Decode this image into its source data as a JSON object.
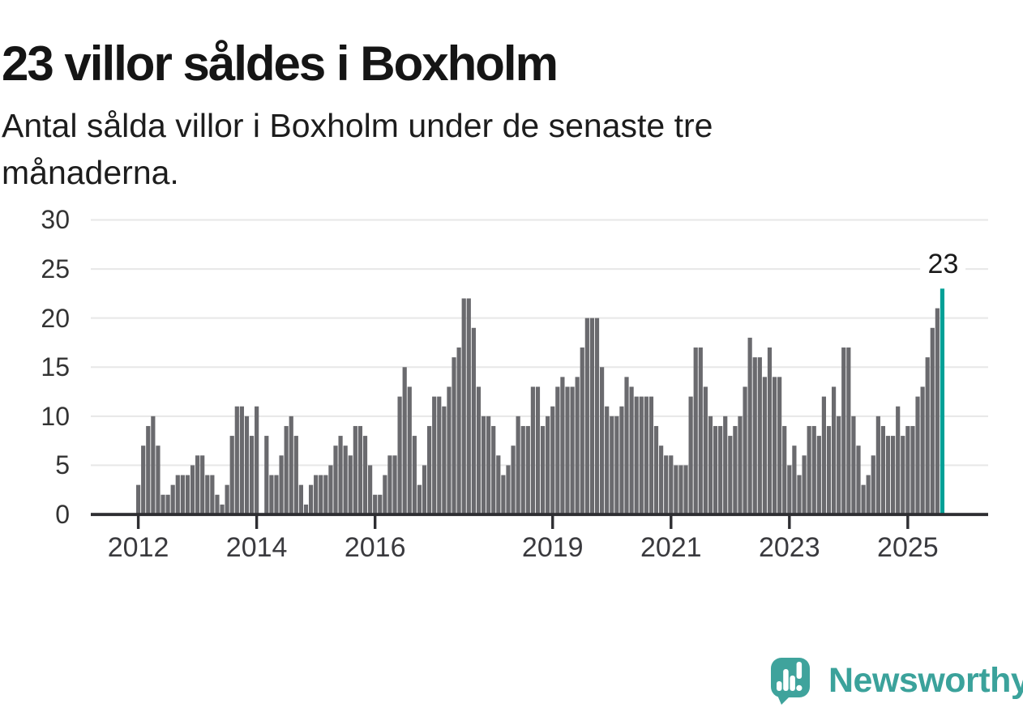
{
  "header": {
    "title": "23 villor såldes i Boxholm",
    "subtitle": "Antal sålda villor i Boxholm under de senaste tre månaderna."
  },
  "chart_data": {
    "type": "bar",
    "title": "23 villor såldes i Boxholm",
    "subtitle": "Antal sålda villor i Boxholm under de senaste tre månaderna.",
    "ylabel": "",
    "xlabel": "",
    "frequency": "monthly",
    "x_start": "2012-01",
    "x_end": "2025-08",
    "ylim": [
      0,
      30
    ],
    "yticks": [
      0,
      5,
      10,
      15,
      20,
      25,
      30
    ],
    "grid": true,
    "values": [
      3,
      7,
      9,
      10,
      7,
      2,
      2,
      3,
      4,
      4,
      4,
      5,
      6,
      6,
      4,
      4,
      2,
      1,
      3,
      8,
      11,
      11,
      10,
      8,
      11,
      0,
      8,
      4,
      4,
      6,
      9,
      10,
      8,
      3,
      1,
      3,
      4,
      4,
      4,
      5,
      7,
      8,
      7,
      6,
      9,
      9,
      8,
      5,
      2,
      2,
      4,
      6,
      6,
      12,
      15,
      13,
      8,
      3,
      5,
      9,
      12,
      12,
      11,
      13,
      16,
      17,
      22,
      22,
      19,
      13,
      10,
      10,
      9,
      6,
      4,
      5,
      7,
      10,
      9,
      9,
      13,
      13,
      9,
      10,
      11,
      13,
      14,
      13,
      13,
      14,
      17,
      20,
      20,
      20,
      15,
      11,
      10,
      10,
      11,
      14,
      13,
      12,
      12,
      12,
      12,
      9,
      7,
      6,
      6,
      5,
      5,
      5,
      12,
      17,
      17,
      13,
      10,
      9,
      9,
      10,
      8,
      9,
      10,
      13,
      18,
      16,
      16,
      14,
      17,
      14,
      14,
      9,
      5,
      7,
      4,
      6,
      9,
      9,
      8,
      12,
      9,
      13,
      10,
      17,
      17,
      10,
      7,
      3,
      4,
      6,
      10,
      9,
      8,
      8,
      11,
      8,
      9,
      9,
      12,
      13,
      16,
      19,
      21,
      23
    ],
    "x_ticks": [
      {
        "label": "2012",
        "index": 0
      },
      {
        "label": "2014",
        "index": 24
      },
      {
        "label": "2016",
        "index": 48
      },
      {
        "label": "2019",
        "index": 84
      },
      {
        "label": "2021",
        "index": 108
      },
      {
        "label": "2023",
        "index": 132
      },
      {
        "label": "2025",
        "index": 156
      }
    ],
    "highlight": {
      "index": 163,
      "value": 23,
      "label": "23"
    },
    "colors": {
      "bar": "#6a6a6e",
      "highlight": "#03a097",
      "gridline": "#e7e7e7",
      "axis": "#2e2e32",
      "value_label": "#1a1a1a"
    }
  },
  "footer": {
    "brand": "Newsworthy",
    "brand_color": "#3ba29b",
    "logo_icon": "newsworthy-speech-bubble-chart-icon"
  }
}
